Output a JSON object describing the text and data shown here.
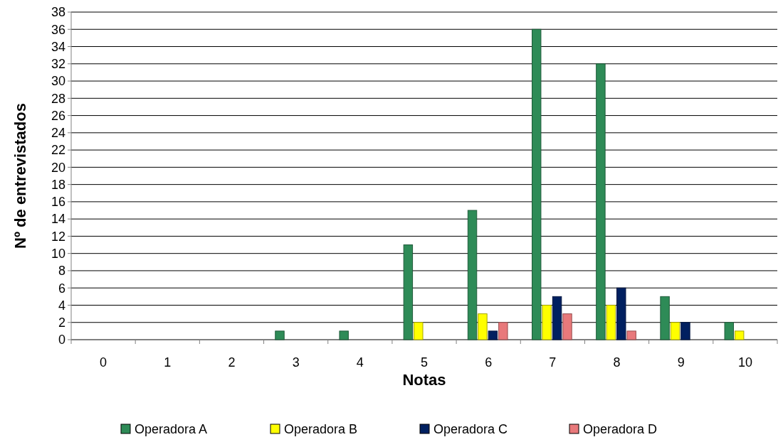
{
  "chart_data": {
    "type": "bar",
    "xlabel": "Notas",
    "ylabel": "Nº de entrevistados",
    "categories": [
      "0",
      "1",
      "2",
      "3",
      "4",
      "5",
      "6",
      "7",
      "8",
      "9",
      "10"
    ],
    "series": [
      {
        "name": "Operadora A",
        "color": "#2e8b57",
        "values": [
          0,
          0,
          0,
          1,
          1,
          11,
          15,
          36,
          32,
          5,
          2
        ]
      },
      {
        "name": "Operadora B",
        "color": "#ffff00",
        "values": [
          0,
          0,
          0,
          0,
          0,
          2,
          3,
          4,
          4,
          2,
          1
        ]
      },
      {
        "name": "Operadora C",
        "color": "#002060",
        "values": [
          0,
          0,
          0,
          0,
          0,
          0,
          1,
          5,
          6,
          2,
          0
        ]
      },
      {
        "name": "Operadora D",
        "color": "#e8797b",
        "values": [
          0,
          0,
          0,
          0,
          0,
          0,
          2,
          3,
          1,
          0,
          0
        ]
      }
    ],
    "ylim": [
      0,
      38
    ],
    "yticks": [
      0,
      2,
      4,
      6,
      8,
      10,
      12,
      14,
      16,
      18,
      20,
      22,
      24,
      26,
      28,
      30,
      32,
      34,
      36,
      38
    ],
    "grid": "y",
    "legend": "bottom"
  }
}
